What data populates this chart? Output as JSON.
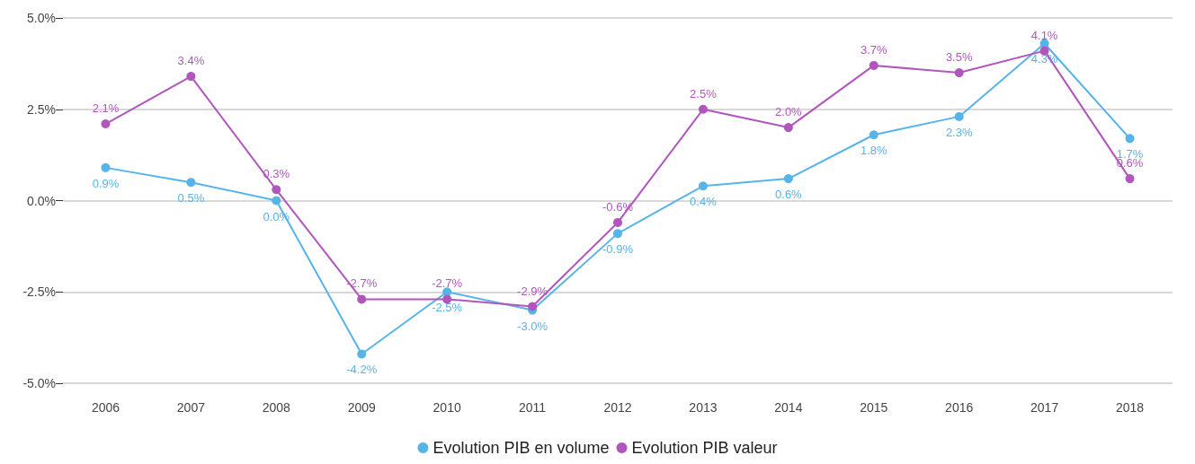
{
  "chart_data": {
    "type": "line",
    "categories": [
      "2006",
      "2007",
      "2008",
      "2009",
      "2010",
      "2011",
      "2012",
      "2013",
      "2014",
      "2015",
      "2016",
      "2017",
      "2018"
    ],
    "series": [
      {
        "name": "Evolution PIB en volume",
        "color": "#56b4e9",
        "values": [
          0.9,
          0.5,
          0.0,
          -4.2,
          -2.5,
          -3.0,
          -0.9,
          0.4,
          0.6,
          1.8,
          2.3,
          4.3,
          1.7
        ],
        "value_labels": [
          "0.9%",
          "0.5%",
          "0.0%",
          "-4.2%",
          "-2.5%",
          "-3.0%",
          "-0.9%",
          "0.4%",
          "0.6%",
          "1.8%",
          "2.3%",
          "4.3%",
          "1.7%"
        ]
      },
      {
        "name": "Evolution PIB valeur",
        "color": "#b156bd",
        "values": [
          2.1,
          3.4,
          0.3,
          -2.7,
          -2.7,
          -2.9,
          -0.6,
          2.5,
          2.0,
          3.7,
          3.5,
          4.1,
          0.6
        ],
        "value_labels": [
          "2.1%",
          "3.4%",
          "0.3%",
          "-2.7%",
          "-2.7%",
          "-2.9%",
          "-0.6%",
          "2.5%",
          "2.0%",
          "3.7%",
          "3.5%",
          "4.1%",
          "0.6%"
        ]
      }
    ],
    "ylim": [
      -5,
      5
    ],
    "yticks": [
      {
        "value": -5,
        "label": "-5.0%"
      },
      {
        "value": -2.5,
        "label": "-2.5%"
      },
      {
        "value": 0,
        "label": "0.0%"
      },
      {
        "value": 2.5,
        "label": "2.5%"
      },
      {
        "value": 5,
        "label": "5.0%"
      }
    ],
    "grid": "y",
    "legend": "bottom",
    "marker": "circle",
    "line_style": "solid"
  }
}
